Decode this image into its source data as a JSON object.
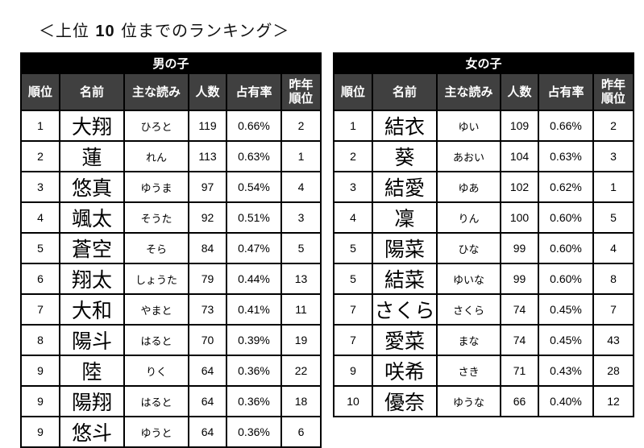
{
  "title": {
    "prefix": "＜上位",
    "number": "10",
    "suffix": "位までのランキング＞"
  },
  "columns": [
    "順位",
    "名前",
    "主な読み",
    "人数",
    "占有率",
    "昨年順位"
  ],
  "column_labels": {
    "rank": "順位",
    "name": "名前",
    "reading": "主な読み",
    "count": "人数",
    "share": "占有率",
    "prev_rank_line1": "昨年",
    "prev_rank_line2": "順位"
  },
  "boys": {
    "heading": "男の子",
    "rows": [
      {
        "rank": "1",
        "name": "大翔",
        "reading": "ひろと",
        "count": "119",
        "share": "0.66%",
        "prev_rank": "2"
      },
      {
        "rank": "2",
        "name": "蓮",
        "reading": "れん",
        "count": "113",
        "share": "0.63%",
        "prev_rank": "1"
      },
      {
        "rank": "3",
        "name": "悠真",
        "reading": "ゆうま",
        "count": "97",
        "share": "0.54%",
        "prev_rank": "4"
      },
      {
        "rank": "4",
        "name": "颯太",
        "reading": "そうた",
        "count": "92",
        "share": "0.51%",
        "prev_rank": "3"
      },
      {
        "rank": "5",
        "name": "蒼空",
        "reading": "そら",
        "count": "84",
        "share": "0.47%",
        "prev_rank": "5"
      },
      {
        "rank": "6",
        "name": "翔太",
        "reading": "しょうた",
        "count": "79",
        "share": "0.44%",
        "prev_rank": "13"
      },
      {
        "rank": "7",
        "name": "大和",
        "reading": "やまと",
        "count": "73",
        "share": "0.41%",
        "prev_rank": "11"
      },
      {
        "rank": "8",
        "name": "陽斗",
        "reading": "はると",
        "count": "70",
        "share": "0.39%",
        "prev_rank": "19"
      },
      {
        "rank": "9",
        "name": "陸",
        "reading": "りく",
        "count": "64",
        "share": "0.36%",
        "prev_rank": "22"
      },
      {
        "rank": "9",
        "name": "陽翔",
        "reading": "はると",
        "count": "64",
        "share": "0.36%",
        "prev_rank": "18"
      },
      {
        "rank": "9",
        "name": "悠斗",
        "reading": "ゆうと",
        "count": "64",
        "share": "0.36%",
        "prev_rank": "6"
      }
    ]
  },
  "girls": {
    "heading": "女の子",
    "rows": [
      {
        "rank": "1",
        "name": "結衣",
        "reading": "ゆい",
        "count": "109",
        "share": "0.66%",
        "prev_rank": "2"
      },
      {
        "rank": "2",
        "name": "葵",
        "reading": "あおい",
        "count": "104",
        "share": "0.63%",
        "prev_rank": "3"
      },
      {
        "rank": "3",
        "name": "結愛",
        "reading": "ゆあ",
        "count": "102",
        "share": "0.62%",
        "prev_rank": "1"
      },
      {
        "rank": "4",
        "name": "凜",
        "reading": "りん",
        "count": "100",
        "share": "0.60%",
        "prev_rank": "5"
      },
      {
        "rank": "5",
        "name": "陽菜",
        "reading": "ひな",
        "count": "99",
        "share": "0.60%",
        "prev_rank": "4"
      },
      {
        "rank": "5",
        "name": "結菜",
        "reading": "ゆいな",
        "count": "99",
        "share": "0.60%",
        "prev_rank": "8"
      },
      {
        "rank": "7",
        "name": "さくら",
        "reading": "さくら",
        "count": "74",
        "share": "0.45%",
        "prev_rank": "7"
      },
      {
        "rank": "7",
        "name": "愛菜",
        "reading": "まな",
        "count": "74",
        "share": "0.45%",
        "prev_rank": "43"
      },
      {
        "rank": "9",
        "name": "咲希",
        "reading": "さき",
        "count": "71",
        "share": "0.43%",
        "prev_rank": "28"
      },
      {
        "rank": "10",
        "name": "優奈",
        "reading": "ゆうな",
        "count": "66",
        "share": "0.40%",
        "prev_rank": "12"
      }
    ]
  },
  "colors": {
    "group_header_bg": "#000000",
    "column_header_bg": "#404040",
    "header_text": "#ffffff",
    "border": "#000000"
  }
}
